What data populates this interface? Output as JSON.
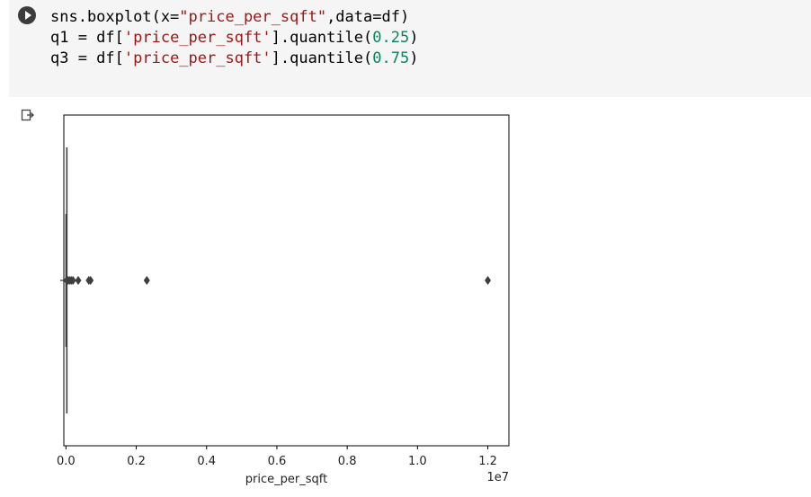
{
  "code_lines": [
    [
      {
        "t": "sns.boxplot(x=",
        "c": ""
      },
      {
        "t": "\"price_per_sqft\"",
        "c": "str"
      },
      {
        "t": ",data=df)",
        "c": ""
      }
    ],
    [
      {
        "t": "q1 = df[",
        "c": ""
      },
      {
        "t": "'price_per_sqft'",
        "c": "str"
      },
      {
        "t": "].quantile(",
        "c": ""
      },
      {
        "t": "0.25",
        "c": "num"
      },
      {
        "t": ")",
        "c": ""
      }
    ],
    [
      {
        "t": "q3 = df[",
        "c": ""
      },
      {
        "t": "'price_per_sqft'",
        "c": "str"
      },
      {
        "t": "].quantile(",
        "c": ""
      },
      {
        "t": "0.75",
        "c": "num"
      },
      {
        "t": ")",
        "c": ""
      }
    ]
  ],
  "icons": {
    "run": "play-circle-icon",
    "output": "output-redirect-icon"
  },
  "chart_data": {
    "type": "boxplot",
    "xlabel": "price_per_sqft",
    "offset_label": "1e7",
    "x_multiplier": 10000000,
    "xlim": [
      -60000,
      12600000
    ],
    "xticks": [
      0.0,
      0.2,
      0.4,
      0.6,
      0.8,
      1.0,
      1.2
    ],
    "xtick_labels": [
      "0.0",
      "0.2",
      "0.4",
      "0.6",
      "0.8",
      "1.0",
      "1.2"
    ],
    "box": {
      "q1": 0,
      "median": 0,
      "q3": 5000,
      "whisker_low": 0,
      "whisker_high": 10000
    },
    "outliers": [
      20000,
      50000,
      100000,
      150000,
      200000,
      350000,
      650000,
      700000,
      2300000,
      12000000
    ],
    "colors": {
      "box_fill": "#3274a1",
      "lines": "#3f3f3f",
      "frame": "#000000"
    }
  }
}
